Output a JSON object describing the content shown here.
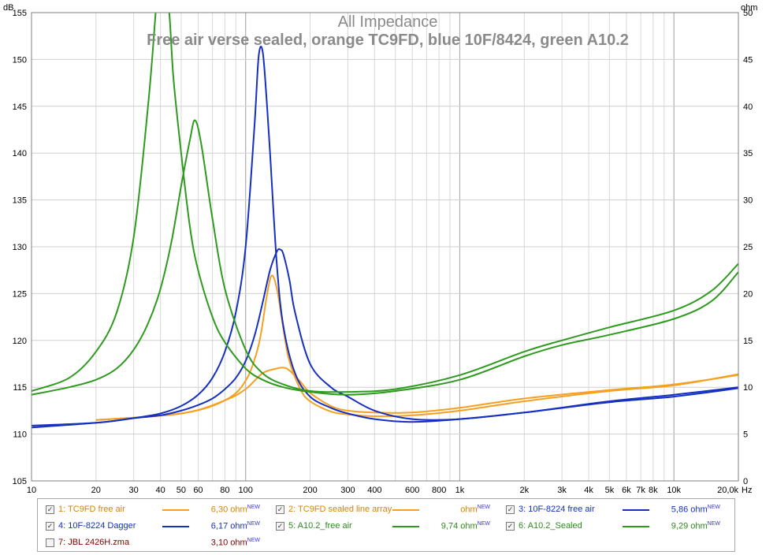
{
  "chart_data": {
    "type": "line",
    "title": "All Impedance",
    "subtitle": "Free air verse sealed, orange TC9FD, blue 10F/8424, green A10.2",
    "x_scale": "log",
    "xlim": [
      10,
      20000
    ],
    "y_left": {
      "label": "dB",
      "lim": [
        105,
        155
      ],
      "ticks": [
        105,
        110,
        115,
        120,
        125,
        130,
        135,
        140,
        145,
        150,
        155
      ]
    },
    "y_right": {
      "label": "ohm",
      "lim": [
        0,
        50
      ],
      "ticks": [
        0,
        5,
        10,
        15,
        20,
        25,
        30,
        35,
        40,
        45,
        50
      ]
    },
    "x_unit": "Hz",
    "x_ticks": [
      {
        "v": 10,
        "l": "10"
      },
      {
        "v": 20,
        "l": "20"
      },
      {
        "v": 30,
        "l": "30"
      },
      {
        "v": 40,
        "l": "40"
      },
      {
        "v": 50,
        "l": "50"
      },
      {
        "v": 60,
        "l": "60"
      },
      {
        "v": 80,
        "l": "80"
      },
      {
        "v": 100,
        "l": "100"
      },
      {
        "v": 200,
        "l": "200"
      },
      {
        "v": 300,
        "l": "300"
      },
      {
        "v": 400,
        "l": "400"
      },
      {
        "v": 600,
        "l": "600"
      },
      {
        "v": 800,
        "l": "800"
      },
      {
        "v": 1000,
        "l": "1k"
      },
      {
        "v": 2000,
        "l": "2k"
      },
      {
        "v": 3000,
        "l": "3k"
      },
      {
        "v": 4000,
        "l": "4k"
      },
      {
        "v": 5000,
        "l": "5k"
      },
      {
        "v": 6000,
        "l": "6k"
      },
      {
        "v": 7000,
        "l": "7k"
      },
      {
        "v": 8000,
        "l": "8k"
      },
      {
        "v": 10000,
        "l": "10k"
      },
      {
        "v": 20000,
        "l": "20,0k"
      }
    ],
    "grid": true,
    "series": [
      {
        "name": "1: TC9FD free air",
        "color": "#f5a020",
        "x": [
          20,
          50,
          80,
          100,
          115,
          125,
          132,
          140,
          150,
          160,
          180,
          200,
          250,
          300,
          400,
          600,
          1000,
          2000,
          5000,
          10000,
          20000
        ],
        "y": [
          111.5,
          112.2,
          113.6,
          115.7,
          119.5,
          124.5,
          126.9,
          125.5,
          121.2,
          117.8,
          114.8,
          113.5,
          112.4,
          112.1,
          111.9,
          112.0,
          112.5,
          113.5,
          114.6,
          115.2,
          116.4
        ]
      },
      {
        "name": "2: TC9FD sealed line array",
        "color": "#f5a020",
        "x": [
          20,
          50,
          80,
          100,
          120,
          140,
          150,
          160,
          180,
          200,
          250,
          300,
          400,
          600,
          1000,
          2000,
          5000,
          10000,
          20000
        ],
        "y": [
          111.5,
          112.2,
          113.6,
          114.8,
          116.5,
          117.0,
          117.1,
          116.8,
          115.6,
          114.4,
          113.0,
          112.5,
          112.3,
          112.3,
          112.8,
          113.8,
          114.7,
          115.3,
          116.3
        ]
      },
      {
        "name": "3: 10F-8224 free air",
        "color": "#1530c0",
        "x": [
          10,
          20,
          30,
          40,
          50,
          60,
          70,
          80,
          90,
          100,
          110,
          115,
          120,
          125,
          130,
          140,
          150,
          170,
          200,
          250,
          300,
          400,
          600,
          1000,
          2000,
          5000,
          10000,
          20000
        ],
        "y": [
          110.7,
          111.2,
          111.7,
          112.2,
          113.0,
          114.2,
          116.0,
          118.8,
          123.0,
          130.0,
          143.0,
          150.3,
          150.9,
          146.0,
          140.0,
          128.0,
          121.5,
          116.5,
          114.0,
          112.8,
          112.2,
          111.6,
          111.3,
          111.6,
          112.3,
          113.4,
          114.0,
          114.9
        ]
      },
      {
        "name": "4: 10F-8224 Dagger",
        "color": "#1530c0",
        "x": [
          10,
          20,
          30,
          40,
          50,
          60,
          70,
          80,
          90,
          100,
          110,
          120,
          130,
          140,
          145,
          150,
          160,
          170,
          200,
          250,
          300,
          400,
          600,
          1000,
          2000,
          5000,
          10000,
          20000
        ],
        "y": [
          110.9,
          111.2,
          111.7,
          112.0,
          112.5,
          113.1,
          113.8,
          114.8,
          116.0,
          117.8,
          120.5,
          124.0,
          127.5,
          129.5,
          129.7,
          129.2,
          126.5,
          123.0,
          117.5,
          115.0,
          114.0,
          112.5,
          111.6,
          111.6,
          112.3,
          113.5,
          114.2,
          115.0
        ]
      },
      {
        "name": "5: A10.2_free air",
        "color": "#2e9a1e",
        "x": [
          10,
          15,
          20,
          25,
          30,
          35,
          38,
          40,
          42,
          44,
          46,
          50,
          55,
          60,
          70,
          80,
          100,
          120,
          150,
          200,
          300,
          500,
          1000,
          2000,
          3000,
          5000,
          10000,
          15000,
          20000
        ],
        "y": [
          114.6,
          116.0,
          118.8,
          123.0,
          131.0,
          145.0,
          155.0,
          162.0,
          158.0,
          155.0,
          148.0,
          140.0,
          132.0,
          127.5,
          122.5,
          119.8,
          117.0,
          115.8,
          115.0,
          114.5,
          114.2,
          114.6,
          115.8,
          118.3,
          119.5,
          120.6,
          122.3,
          124.2,
          127.3
        ]
      },
      {
        "name": "6: A10.2_Sealed",
        "color": "#2e9a1e",
        "x": [
          10,
          15,
          20,
          25,
          30,
          35,
          40,
          45,
          50,
          55,
          58,
          62,
          70,
          80,
          100,
          120,
          150,
          200,
          300,
          500,
          1000,
          2000,
          3000,
          5000,
          10000,
          15000,
          20000
        ],
        "y": [
          114.2,
          115.0,
          115.8,
          117.0,
          119.0,
          121.8,
          125.5,
          130.5,
          136.5,
          141.5,
          143.5,
          141.0,
          133.0,
          125.5,
          119.0,
          116.5,
          115.3,
          114.6,
          114.5,
          114.8,
          116.3,
          118.8,
          120.0,
          121.4,
          123.2,
          125.3,
          128.2
        ]
      },
      {
        "name": "7: JBL 2426H.zma",
        "color": "#800000",
        "hidden": true,
        "x": [],
        "y": []
      }
    ]
  },
  "legend": {
    "items": [
      {
        "label": "1: TC9FD free air",
        "value": "6,30 ohm",
        "sup": "NEW",
        "checked": "✓",
        "color": "#f5a020",
        "text_color": "#d98300"
      },
      {
        "label": "2: TC9FD sealed line array",
        "value": "ohm",
        "sup": "NEW",
        "checked": "✓",
        "color": "#f5a020",
        "text_color": "#d98300"
      },
      {
        "label": "3: 10F-8224 free air",
        "value": "5,86 ohm",
        "sup": "NEW",
        "checked": "✓",
        "color": "#1530c0",
        "text_color": "#1530c0"
      },
      {
        "label": "4: 10F-8224 Dagger",
        "value": "6,17 ohm",
        "sup": "NEW",
        "checked": "✓",
        "color": "#1530c0",
        "text_color": "#1530c0"
      },
      {
        "label": "5: A10.2_free air",
        "value": "9,74 ohm",
        "sup": "NEW",
        "checked": "✓",
        "color": "#2e9a1e",
        "text_color": "#2e8a1e"
      },
      {
        "label": "6: A10.2_Sealed",
        "value": "9,29 ohm",
        "sup": "NEW",
        "checked": "✓",
        "color": "#2e9a1e",
        "text_color": "#2e8a1e"
      },
      {
        "label": "7: JBL 2426H.zma",
        "value": "3,10 ohm",
        "sup": "NEW",
        "checked": "",
        "color": "",
        "text_color": "#800000"
      }
    ]
  }
}
